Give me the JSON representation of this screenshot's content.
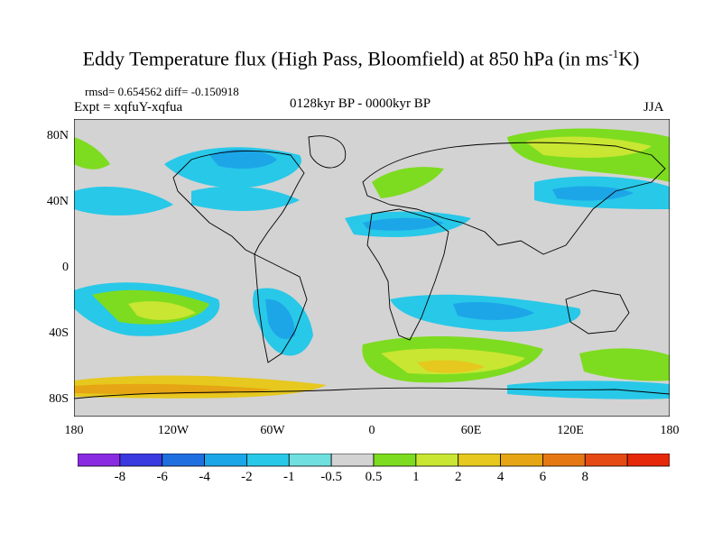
{
  "title": {
    "main": "Eddy Temperature flux (High Pass, Bloomfield) at 850 hPa (in ms",
    "sup": "-1",
    "end": "K)"
  },
  "stats": "rmsd= 0.654562 diff= -0.150918",
  "experiment": "Expt = xqfuY-xqfua",
  "period": "0128kyr BP - 0000kyr BP",
  "season": "JJA",
  "map": {
    "background": "#d3d3d3",
    "y_ticks": [
      "80N",
      "40N",
      "0",
      "40S",
      "80S"
    ],
    "x_ticks": [
      "180",
      "120W",
      "60W",
      "0",
      "60E",
      "120E",
      "180"
    ]
  },
  "colorbar": {
    "colors": [
      "#8a2be2",
      "#3a3ae0",
      "#1f6fe0",
      "#1ca6e8",
      "#28c8e8",
      "#6fdfdf",
      "#d3d3d3",
      "#7ddc1f",
      "#c8e632",
      "#e6c81e",
      "#e6a514",
      "#e67814",
      "#e64a14",
      "#e6280a"
    ],
    "labels": [
      "-8",
      "-6",
      "-4",
      "-2",
      "-1",
      "-0.5",
      "0.5",
      "1",
      "2",
      "4",
      "6",
      "8"
    ]
  }
}
